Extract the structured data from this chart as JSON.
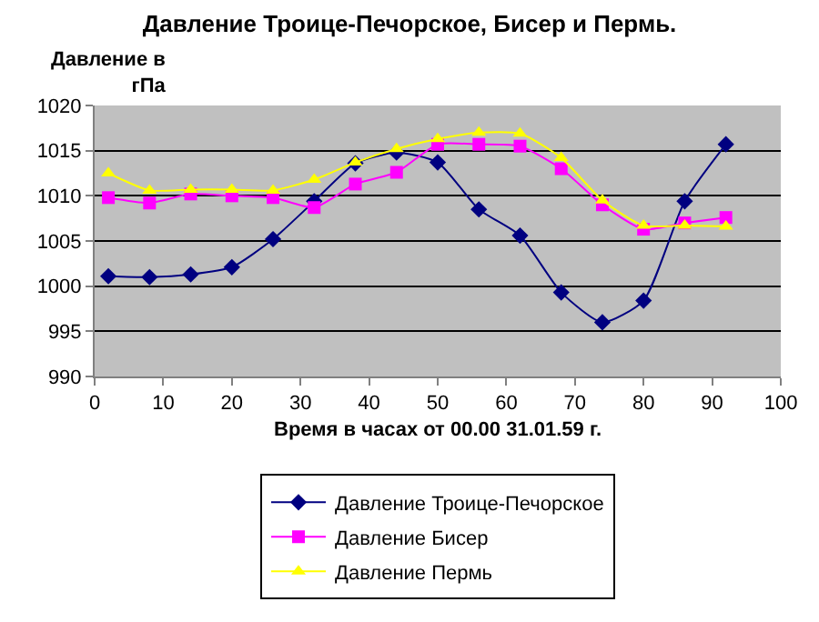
{
  "chart_data": {
    "type": "line",
    "title": "Давление Троице-Печорское, Бисер и Пермь.",
    "xlabel": "Время в часах от 00.00 31.01.59 г.",
    "ylabel": "Давление в гПа",
    "x": [
      2,
      8,
      14,
      20,
      26,
      32,
      38,
      44,
      50,
      56,
      62,
      68,
      74,
      80,
      86,
      92
    ],
    "series": [
      {
        "name": "Давление Троице-Печорское",
        "color": "#000080",
        "marker": "diamond",
        "values": [
          1001.1,
          1001.0,
          1001.3,
          1002.1,
          1005.2,
          1009.4,
          1013.6,
          1014.8,
          1013.7,
          1008.5,
          1005.6,
          999.3,
          996.0,
          998.4,
          1009.4,
          1015.7
        ]
      },
      {
        "name": "Давление Бисер",
        "color": "#ff00ff",
        "marker": "square",
        "values": [
          1009.8,
          1009.2,
          1010.2,
          1010.0,
          1009.8,
          1008.7,
          1011.3,
          1012.6,
          1015.7,
          1015.7,
          1015.5,
          1013.0,
          1009.0,
          1006.3,
          1007.0,
          1007.6
        ]
      },
      {
        "name": "Давление Пермь",
        "color": "#ffff00",
        "marker": "triangle",
        "values": [
          1012.5,
          1010.6,
          1010.7,
          1010.7,
          1010.6,
          1011.8,
          1013.7,
          1015.2,
          1016.3,
          1017.0,
          1016.9,
          1014.2,
          1009.5,
          1006.7,
          1006.7,
          1006.6
        ]
      }
    ],
    "xlim": [
      0,
      100
    ],
    "xticks": [
      0,
      10,
      20,
      30,
      40,
      50,
      60,
      70,
      80,
      90,
      100
    ],
    "ylim": [
      990,
      1020
    ],
    "yticks": [
      990,
      995,
      1000,
      1005,
      1010,
      1015,
      1020
    ],
    "grid": "y",
    "legend": "bottom",
    "line_style": "solid"
  }
}
